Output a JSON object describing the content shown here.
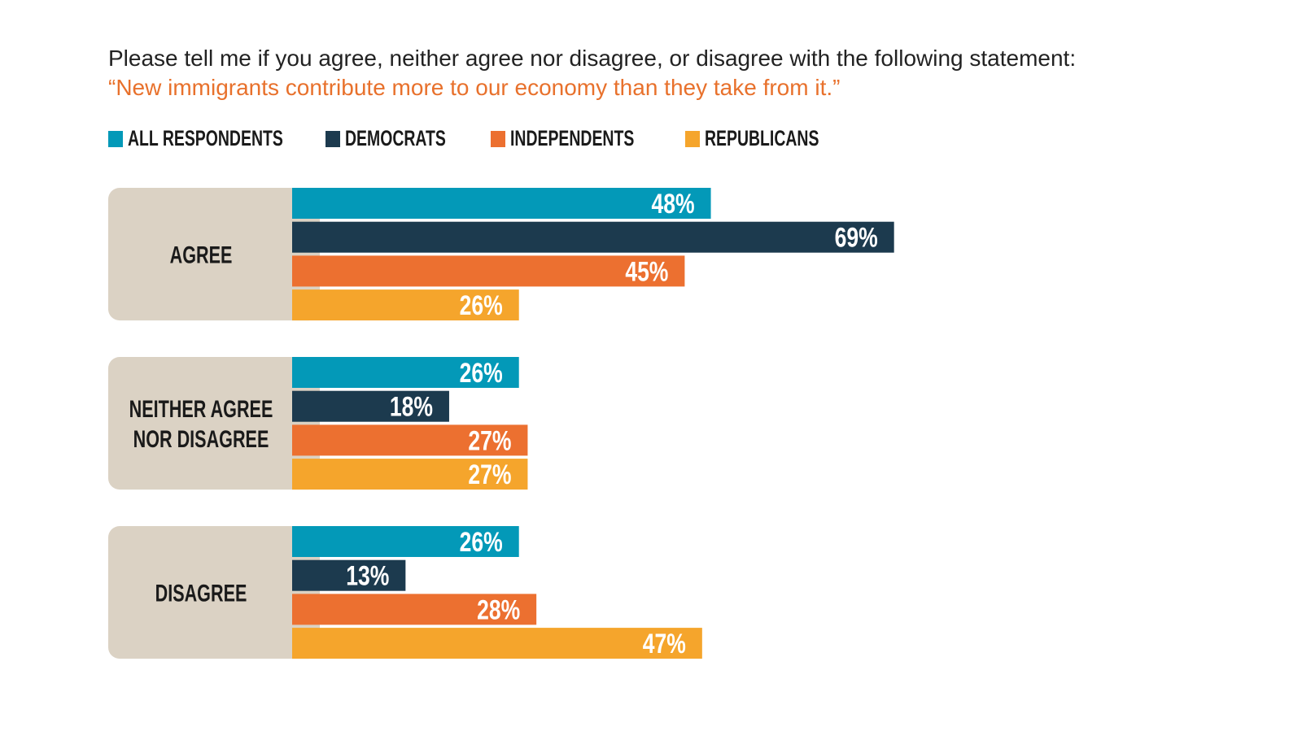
{
  "chart_data": {
    "type": "bar",
    "orientation": "horizontal",
    "title": "Please tell me if you agree, neither agree nor disagree, or disagree with the following statement:",
    "subtitle": "“New immigrants contribute more to our economy than they take from it.”",
    "categories": [
      [
        "AGREE"
      ],
      [
        "NEITHER AGREE",
        "NOR DISAGREE"
      ],
      [
        "DISAGREE"
      ]
    ],
    "series": [
      {
        "name": "ALL RESPONDENTS",
        "color": "#0399b8",
        "values": [
          48,
          26,
          26
        ]
      },
      {
        "name": "DEMOCRATS",
        "color": "#1c3a4e",
        "values": [
          69,
          18,
          13
        ]
      },
      {
        "name": "INDEPENDENTS",
        "color": "#ec7030",
        "values": [
          45,
          27,
          28
        ]
      },
      {
        "name": "REPUBLICANS",
        "color": "#f5a52c",
        "values": [
          26,
          27,
          47
        ]
      }
    ],
    "value_suffix": "%",
    "legend_placement": "top-left",
    "grid": false,
    "category_panel_color": "#dbd2c4"
  }
}
